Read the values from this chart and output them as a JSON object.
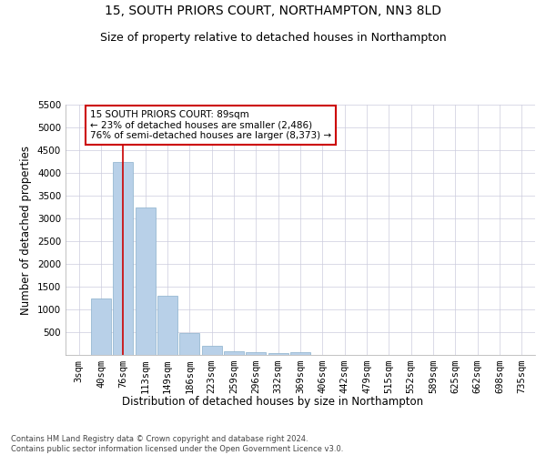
{
  "title": "15, SOUTH PRIORS COURT, NORTHAMPTON, NN3 8LD",
  "subtitle": "Size of property relative to detached houses in Northampton",
  "xlabel": "Distribution of detached houses by size in Northampton",
  "ylabel": "Number of detached properties",
  "footer_line1": "Contains HM Land Registry data © Crown copyright and database right 2024.",
  "footer_line2": "Contains public sector information licensed under the Open Government Licence v3.0.",
  "categories": [
    "3sqm",
    "40sqm",
    "76sqm",
    "113sqm",
    "149sqm",
    "186sqm",
    "223sqm",
    "259sqm",
    "296sqm",
    "332sqm",
    "369sqm",
    "406sqm",
    "442sqm",
    "479sqm",
    "515sqm",
    "552sqm",
    "589sqm",
    "625sqm",
    "662sqm",
    "698sqm",
    "735sqm"
  ],
  "values": [
    0,
    1250,
    4250,
    3250,
    1300,
    480,
    200,
    90,
    70,
    50,
    70,
    0,
    0,
    0,
    0,
    0,
    0,
    0,
    0,
    0,
    0
  ],
  "bar_color": "#b8d0e8",
  "bar_edge_color": "#8ab0cc",
  "ylim": [
    0,
    5500
  ],
  "yticks": [
    0,
    500,
    1000,
    1500,
    2000,
    2500,
    3000,
    3500,
    4000,
    4500,
    5000,
    5500
  ],
  "vline_x_index": 2,
  "vline_color": "#cc0000",
  "annotation_line1": "15 SOUTH PRIORS COURT: 89sqm",
  "annotation_line2": "← 23% of detached houses are smaller (2,486)",
  "annotation_line3": "76% of semi-detached houses are larger (8,373) →",
  "annotation_box_color": "#ffffff",
  "annotation_box_edge_color": "#cc0000",
  "bg_color": "#ffffff",
  "grid_color": "#ccccdd",
  "title_fontsize": 10,
  "subtitle_fontsize": 9,
  "axis_label_fontsize": 8.5,
  "tick_fontsize": 7.5,
  "annotation_fontsize": 7.5,
  "footer_fontsize": 6
}
